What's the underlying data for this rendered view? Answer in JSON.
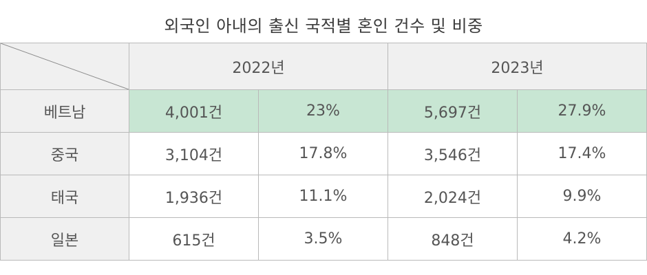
{
  "title": "외국인 아내의 출신 국적별 혼인 건수 및 비중",
  "colors": {
    "header_bg": "#f0f0f0",
    "highlight_bg": "#c8e6d3",
    "border": "#b9b9b9",
    "text": "#555555"
  },
  "chart_data": {
    "type": "table",
    "title": "외국인 아내의 출신 국적별 혼인 건수 및 비중",
    "years": [
      "2022년",
      "2023년"
    ],
    "rows": [
      {
        "country": "베트남",
        "cells": [
          "4,001건",
          "23%",
          "5,697건",
          "27.9%"
        ],
        "highlight": true
      },
      {
        "country": "중국",
        "cells": [
          "3,104건",
          "17.8%",
          "3,546건",
          "17.4%"
        ],
        "highlight": false
      },
      {
        "country": "태국",
        "cells": [
          "1,936건",
          "11.1%",
          "2,024건",
          "9.9%"
        ],
        "highlight": false
      },
      {
        "country": "일본",
        "cells": [
          "615건",
          "3.5%",
          "848건",
          "4.2%"
        ],
        "highlight": false
      }
    ],
    "values": {
      "2022": {
        "count": [
          4001,
          3104,
          1936,
          615
        ],
        "share_pct": [
          23,
          17.8,
          11.1,
          3.5
        ]
      },
      "2023": {
        "count": [
          5697,
          3546,
          2024,
          848
        ],
        "share_pct": [
          27.9,
          17.4,
          9.9,
          4.2
        ]
      }
    }
  }
}
